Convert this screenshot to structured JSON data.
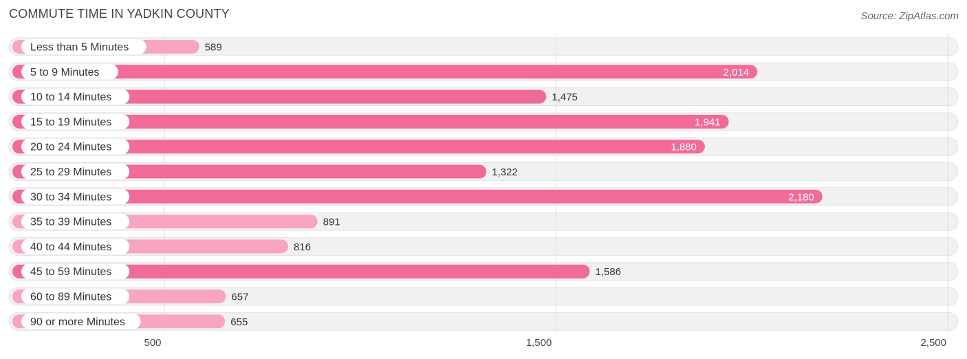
{
  "header": {
    "title": "COMMUTE TIME IN YADKIN COUNTY",
    "source": "Source: ZipAtlas.com"
  },
  "colors": {
    "bar_strong": "#f06b98",
    "bar_light": "#f7a5c0",
    "track": "#f1f1f1",
    "grid": "#dddddd"
  },
  "chart_data": {
    "type": "bar",
    "orientation": "horizontal",
    "categories": [
      "Less than 5 Minutes",
      "5 to 9 Minutes",
      "10 to 14 Minutes",
      "15 to 19 Minutes",
      "20 to 24 Minutes",
      "25 to 29 Minutes",
      "30 to 34 Minutes",
      "35 to 39 Minutes",
      "40 to 44 Minutes",
      "45 to 59 Minutes",
      "60 to 89 Minutes",
      "90 or more Minutes"
    ],
    "values": [
      589,
      2014,
      1475,
      1941,
      1880,
      1322,
      2180,
      891,
      816,
      1586,
      657,
      655
    ],
    "value_labels": [
      "589",
      "2,014",
      "1,475",
      "1,941",
      "1,880",
      "1,322",
      "2,180",
      "891",
      "816",
      "1,586",
      "657",
      "655"
    ],
    "xticks": [
      500,
      1500,
      2500
    ],
    "xtick_labels": [
      "500",
      "1,500",
      "2,500"
    ],
    "xlim": [
      100,
      2500
    ],
    "grid": true
  }
}
